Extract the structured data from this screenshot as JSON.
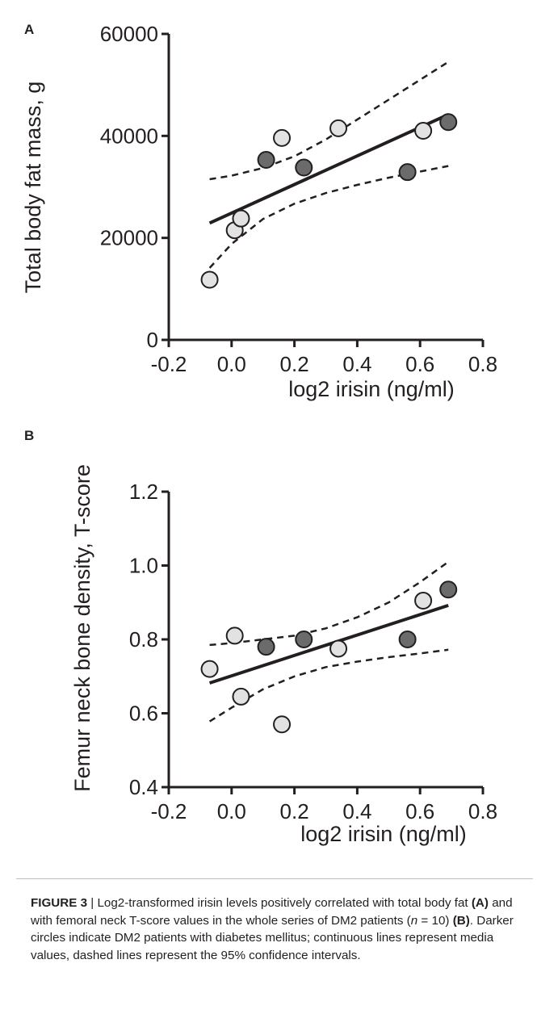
{
  "figure": {
    "panels": [
      {
        "label": "A",
        "ylabel": "Total body fat mass, g",
        "xlabel": "log2 irisin (ng/ml)"
      },
      {
        "label": "B",
        "ylabel": "Femur neck bone density, T-score",
        "xlabel": "log2 irisin (ng/ml)"
      }
    ],
    "caption": {
      "figure_label": "FIGURE 3",
      "sep": " | ",
      "part1": "Log2-transformed irisin levels positively correlated with total body fat ",
      "ref_a": "(A)",
      "part2": " and with femoral neck T-score values in the whole series of DM2 patients (",
      "n_var": "n",
      "n_value": " = 10) ",
      "ref_b": "(B)",
      "part3": ". Darker circles indicate DM2 patients with diabetes mellitus; continuous lines represent media values, dashed lines represent the 95% confidence intervals."
    }
  },
  "colors": {
    "light_point": "#e2e2e2",
    "dark_point": "#6b6b6b",
    "ink": "#231f20"
  },
  "chart_data": [
    {
      "type": "scatter",
      "xlabel": "log2 irisin (ng/ml)",
      "ylabel": "Total body fat mass, g",
      "xlim": [
        -0.2,
        0.8
      ],
      "ylim": [
        0,
        60000
      ],
      "xticks": [
        -0.2,
        0.0,
        0.2,
        0.4,
        0.6,
        0.8
      ],
      "xtick_labels": [
        "-0.2",
        "0.0",
        "0.2",
        "0.4",
        "0.6",
        "0.8"
      ],
      "yticks": [
        0,
        20000,
        40000,
        60000
      ],
      "ytick_labels": [
        "0",
        "20000",
        "40000",
        "60000"
      ],
      "points": [
        {
          "x": -0.07,
          "y": 11800,
          "group": "light"
        },
        {
          "x": 0.01,
          "y": 21500,
          "group": "light"
        },
        {
          "x": 0.03,
          "y": 23800,
          "group": "light"
        },
        {
          "x": 0.11,
          "y": 35300,
          "group": "dark"
        },
        {
          "x": 0.16,
          "y": 39600,
          "group": "light"
        },
        {
          "x": 0.23,
          "y": 33800,
          "group": "dark"
        },
        {
          "x": 0.34,
          "y": 41500,
          "group": "light"
        },
        {
          "x": 0.56,
          "y": 32900,
          "group": "dark"
        },
        {
          "x": 0.61,
          "y": 41000,
          "group": "light"
        },
        {
          "x": 0.69,
          "y": 42700,
          "group": "dark"
        }
      ],
      "fit_line": {
        "x": [
          -0.07,
          0.69
        ],
        "y": [
          22900,
          44200
        ]
      },
      "ci_upper": {
        "x": [
          -0.07,
          0.0,
          0.1,
          0.2,
          0.3,
          0.4,
          0.5,
          0.6,
          0.69
        ],
        "y": [
          31500,
          32200,
          33700,
          36000,
          39300,
          43200,
          47100,
          51000,
          54500
        ]
      },
      "ci_lower": {
        "x": [
          -0.07,
          0.0,
          0.1,
          0.2,
          0.3,
          0.4,
          0.5,
          0.6,
          0.69
        ],
        "y": [
          14100,
          18800,
          23700,
          26700,
          28800,
          30400,
          31800,
          33000,
          34100
        ]
      }
    },
    {
      "type": "scatter",
      "xlabel": "log2 irisin (ng/ml)",
      "ylabel": "Femur neck bone density, T-score",
      "xlim": [
        -0.2,
        0.8
      ],
      "ylim": [
        0.4,
        1.2
      ],
      "xticks": [
        -0.2,
        0.0,
        0.2,
        0.4,
        0.6,
        0.8
      ],
      "xtick_labels": [
        "-0.2",
        "0.0",
        "0.2",
        "0.4",
        "0.6",
        "0.8"
      ],
      "yticks": [
        0.4,
        0.6,
        0.8,
        1.0,
        1.2
      ],
      "ytick_labels": [
        "0.4",
        "0.6",
        "0.8",
        "1.0",
        "1.2"
      ],
      "points": [
        {
          "x": -0.07,
          "y": 0.72,
          "group": "light"
        },
        {
          "x": 0.01,
          "y": 0.81,
          "group": "light"
        },
        {
          "x": 0.03,
          "y": 0.645,
          "group": "light"
        },
        {
          "x": 0.11,
          "y": 0.78,
          "group": "dark"
        },
        {
          "x": 0.16,
          "y": 0.57,
          "group": "light"
        },
        {
          "x": 0.23,
          "y": 0.8,
          "group": "dark"
        },
        {
          "x": 0.34,
          "y": 0.775,
          "group": "light"
        },
        {
          "x": 0.56,
          "y": 0.8,
          "group": "dark"
        },
        {
          "x": 0.61,
          "y": 0.905,
          "group": "light"
        },
        {
          "x": 0.69,
          "y": 0.935,
          "group": "dark"
        }
      ],
      "fit_line": {
        "x": [
          -0.07,
          0.69
        ],
        "y": [
          0.682,
          0.892
        ]
      },
      "ci_upper": {
        "x": [
          -0.07,
          0.0,
          0.1,
          0.2,
          0.3,
          0.4,
          0.5,
          0.6,
          0.69
        ],
        "y": [
          0.785,
          0.79,
          0.8,
          0.81,
          0.83,
          0.86,
          0.9,
          0.955,
          1.01
        ]
      },
      "ci_lower": {
        "x": [
          -0.07,
          0.0,
          0.1,
          0.2,
          0.3,
          0.4,
          0.5,
          0.6,
          0.69
        ],
        "y": [
          0.578,
          0.615,
          0.665,
          0.7,
          0.725,
          0.74,
          0.752,
          0.762,
          0.772
        ]
      }
    }
  ]
}
